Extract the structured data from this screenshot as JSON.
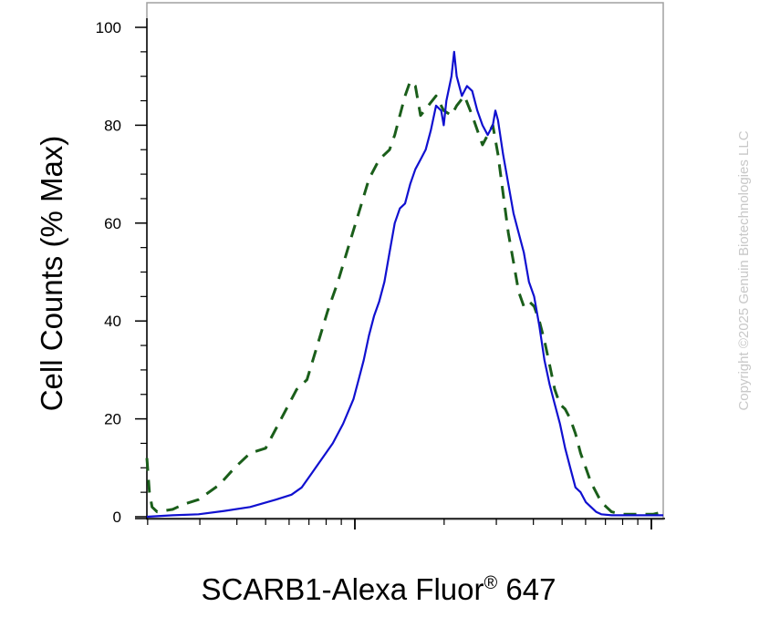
{
  "chart_data": {
    "type": "line",
    "xlabel": "SCARB1-Alexa Fluor",
    "xlabel_mark": "®",
    "xlabel_suffix": " 647",
    "ylabel": "Cell Counts (% Max)",
    "ylim": [
      0,
      100
    ],
    "y_ticks": [
      "0",
      "20",
      "40",
      "60",
      "80",
      "100"
    ],
    "x_scale": "log",
    "x_tick_labels": [],
    "grid": false,
    "watermark": "Copyright ©2025 Genuin Biotechnologies LLC",
    "series": [
      {
        "style": "dashed",
        "color": "#1a5e1a",
        "points": [
          [
            0.0,
            12
          ],
          [
            0.005,
            5
          ],
          [
            0.01,
            2
          ],
          [
            0.02,
            1
          ],
          [
            0.05,
            1.5
          ],
          [
            0.07,
            2.5
          ],
          [
            0.1,
            3.5
          ],
          [
            0.14,
            6.5
          ],
          [
            0.17,
            10
          ],
          [
            0.2,
            13
          ],
          [
            0.23,
            14
          ],
          [
            0.26,
            20
          ],
          [
            0.29,
            26
          ],
          [
            0.31,
            28
          ],
          [
            0.33,
            35
          ],
          [
            0.35,
            42
          ],
          [
            0.37,
            48
          ],
          [
            0.39,
            55
          ],
          [
            0.41,
            62
          ],
          [
            0.43,
            69
          ],
          [
            0.45,
            73
          ],
          [
            0.47,
            75
          ],
          [
            0.48,
            78
          ],
          [
            0.49,
            82
          ],
          [
            0.5,
            86
          ],
          [
            0.51,
            89
          ],
          [
            0.52,
            88
          ],
          [
            0.53,
            82
          ],
          [
            0.545,
            84
          ],
          [
            0.56,
            86
          ],
          [
            0.575,
            83
          ],
          [
            0.59,
            82
          ],
          [
            0.6,
            84
          ],
          [
            0.615,
            86
          ],
          [
            0.63,
            82
          ],
          [
            0.64,
            79
          ],
          [
            0.65,
            76
          ],
          [
            0.66,
            78
          ],
          [
            0.67,
            80
          ],
          [
            0.68,
            74
          ],
          [
            0.69,
            66
          ],
          [
            0.7,
            58
          ],
          [
            0.71,
            52
          ],
          [
            0.72,
            46
          ],
          [
            0.73,
            43
          ],
          [
            0.74,
            44
          ],
          [
            0.75,
            43
          ],
          [
            0.76,
            40
          ],
          [
            0.77,
            36
          ],
          [
            0.78,
            31
          ],
          [
            0.79,
            26
          ],
          [
            0.8,
            23
          ],
          [
            0.81,
            22
          ],
          [
            0.82,
            20
          ],
          [
            0.83,
            17
          ],
          [
            0.84,
            13
          ],
          [
            0.85,
            10
          ],
          [
            0.86,
            7
          ],
          [
            0.87,
            5
          ],
          [
            0.88,
            3
          ],
          [
            0.89,
            2
          ],
          [
            0.9,
            1
          ],
          [
            0.92,
            0.5
          ],
          [
            0.95,
            0.5
          ],
          [
            0.98,
            0.5
          ],
          [
            1.0,
            1
          ]
        ]
      },
      {
        "style": "solid",
        "color": "#1010d0",
        "points": [
          [
            0.0,
            0
          ],
          [
            0.05,
            0.3
          ],
          [
            0.1,
            0.5
          ],
          [
            0.15,
            1.2
          ],
          [
            0.2,
            2
          ],
          [
            0.25,
            3.5
          ],
          [
            0.28,
            4.5
          ],
          [
            0.3,
            6
          ],
          [
            0.32,
            9
          ],
          [
            0.34,
            12
          ],
          [
            0.36,
            15
          ],
          [
            0.38,
            19
          ],
          [
            0.4,
            24
          ],
          [
            0.41,
            28
          ],
          [
            0.42,
            32
          ],
          [
            0.43,
            37
          ],
          [
            0.44,
            41
          ],
          [
            0.45,
            44
          ],
          [
            0.46,
            48
          ],
          [
            0.47,
            54
          ],
          [
            0.48,
            60
          ],
          [
            0.49,
            63
          ],
          [
            0.5,
            64
          ],
          [
            0.51,
            68
          ],
          [
            0.52,
            71
          ],
          [
            0.53,
            73
          ],
          [
            0.54,
            75
          ],
          [
            0.55,
            79
          ],
          [
            0.56,
            84
          ],
          [
            0.57,
            83
          ],
          [
            0.575,
            80
          ],
          [
            0.58,
            85
          ],
          [
            0.59,
            90
          ],
          [
            0.595,
            95
          ],
          [
            0.6,
            90
          ],
          [
            0.61,
            86
          ],
          [
            0.62,
            88
          ],
          [
            0.63,
            87
          ],
          [
            0.64,
            83
          ],
          [
            0.65,
            80
          ],
          [
            0.66,
            78
          ],
          [
            0.67,
            80
          ],
          [
            0.675,
            83
          ],
          [
            0.68,
            81
          ],
          [
            0.69,
            74
          ],
          [
            0.7,
            68
          ],
          [
            0.71,
            62
          ],
          [
            0.72,
            58
          ],
          [
            0.73,
            54
          ],
          [
            0.74,
            48
          ],
          [
            0.75,
            45
          ],
          [
            0.76,
            39
          ],
          [
            0.77,
            32
          ],
          [
            0.78,
            27
          ],
          [
            0.79,
            23
          ],
          [
            0.8,
            19
          ],
          [
            0.81,
            14
          ],
          [
            0.82,
            10
          ],
          [
            0.83,
            6
          ],
          [
            0.84,
            5
          ],
          [
            0.85,
            3
          ],
          [
            0.86,
            2
          ],
          [
            0.87,
            1
          ],
          [
            0.88,
            0.5
          ],
          [
            0.9,
            0.3
          ],
          [
            0.95,
            0.3
          ],
          [
            1.0,
            0.3
          ]
        ]
      }
    ]
  }
}
